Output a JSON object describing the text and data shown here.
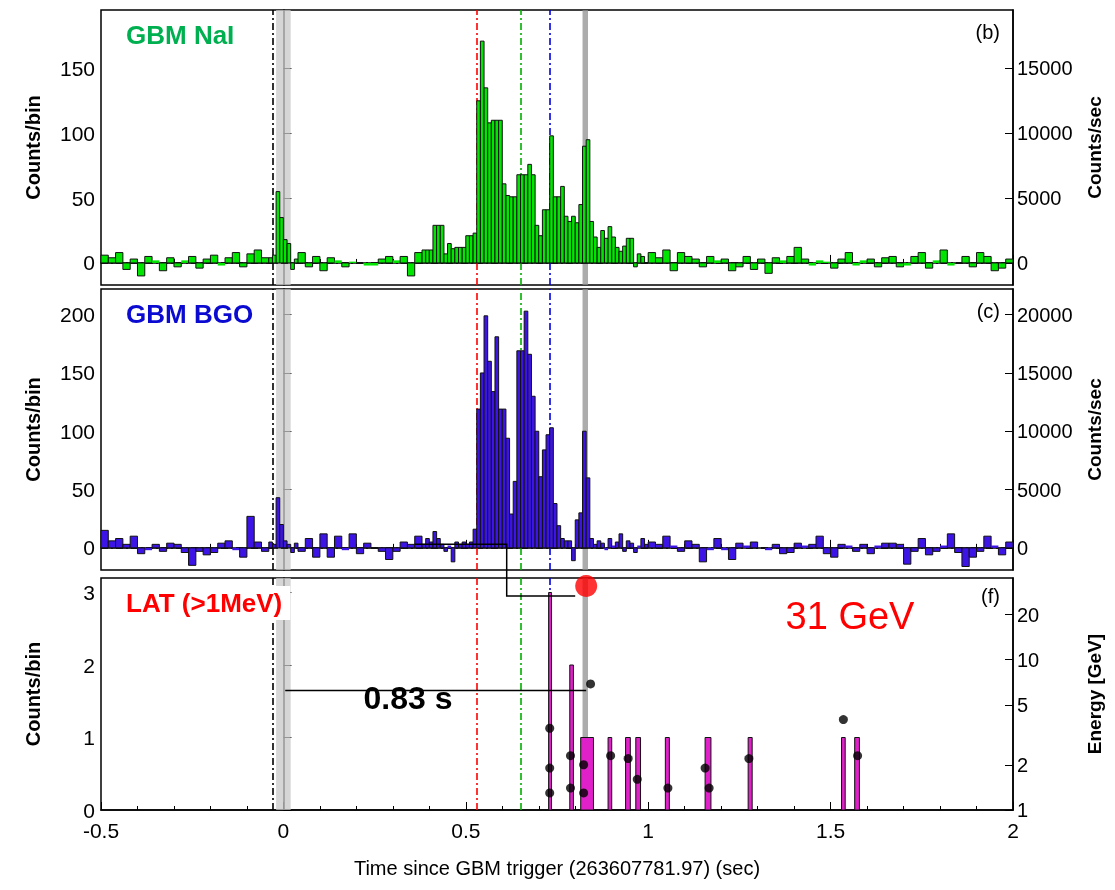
{
  "chart_data": [
    {
      "type": "histogram",
      "title": "GBM NaI",
      "ylabel": "Counts/bin",
      "y2label": "Counts/sec",
      "annotations": [
        "(b)"
      ],
      "bins": [
        -0.5,
        -0.48,
        -0.46,
        -0.44,
        -0.42,
        -0.4,
        -0.38,
        -0.36,
        -0.34,
        -0.32,
        -0.3,
        -0.28,
        -0.26,
        -0.24,
        -0.22,
        -0.2,
        -0.18,
        -0.16,
        -0.14,
        -0.12,
        -0.1,
        -0.08,
        -0.06,
        -0.04,
        -0.03,
        -0.02,
        -0.01,
        0,
        0.01,
        0.02,
        0.03,
        0.04,
        0.06,
        0.08,
        0.1,
        0.12,
        0.14,
        0.16,
        0.18,
        0.2,
        0.22,
        0.24,
        0.26,
        0.28,
        0.3,
        0.32,
        0.34,
        0.36,
        0.38,
        0.39,
        0.4,
        0.41,
        0.42,
        0.43,
        0.44,
        0.45,
        0.46,
        0.47,
        0.48,
        0.49,
        0.5,
        0.51,
        0.52,
        0.53,
        0.54,
        0.55,
        0.56,
        0.57,
        0.58,
        0.59,
        0.6,
        0.61,
        0.62,
        0.63,
        0.64,
        0.65,
        0.66,
        0.67,
        0.68,
        0.69,
        0.7,
        0.71,
        0.72,
        0.73,
        0.74,
        0.75,
        0.76,
        0.77,
        0.78,
        0.79,
        0.8,
        0.81,
        0.82,
        0.83,
        0.84,
        0.85,
        0.86,
        0.87,
        0.88,
        0.89,
        0.9,
        0.91,
        0.92,
        0.93,
        0.94,
        0.95,
        0.96,
        0.97,
        0.98,
        0.99,
        1,
        1.02,
        1.04,
        1.06,
        1.08,
        1.1,
        1.12,
        1.14,
        1.16,
        1.18,
        1.2,
        1.22,
        1.24,
        1.26,
        1.28,
        1.3,
        1.32,
        1.34,
        1.36,
        1.38,
        1.4,
        1.42,
        1.44,
        1.46,
        1.48,
        1.5,
        1.52,
        1.54,
        1.56,
        1.58,
        1.6,
        1.62,
        1.64,
        1.66,
        1.68,
        1.7,
        1.72,
        1.74,
        1.76,
        1.78,
        1.8,
        1.82,
        1.84,
        1.86,
        1.88,
        1.9,
        1.92,
        1.94,
        1.96,
        1.98,
        2
      ],
      "values": [
        6,
        4,
        8,
        -5,
        3,
        -10,
        5,
        2,
        -6,
        4,
        -3,
        2,
        5,
        -4,
        3,
        6,
        -2,
        4,
        8,
        -3,
        7,
        10,
        4,
        4,
        6,
        55,
        35,
        18,
        15,
        -5,
        3,
        8,
        -3,
        5,
        -6,
        4,
        2,
        -3,
        1,
        0,
        -2,
        -2,
        3,
        5,
        2,
        5,
        -10,
        8,
        10,
        10,
        10,
        29,
        29,
        29,
        7,
        15,
        11,
        12,
        12,
        12,
        21,
        21,
        23,
        125,
        171,
        135,
        108,
        110,
        110,
        110,
        61,
        52,
        51,
        51,
        68,
        68,
        68,
        76,
        68,
        29,
        21,
        41,
        41,
        98,
        51,
        51,
        59,
        36,
        32,
        36,
        31,
        45,
        90,
        95,
        32,
        20,
        12,
        25,
        19,
        28,
        20,
        12,
        9,
        13,
        19,
        19,
        -3,
        7,
        5,
        0,
        8,
        4,
        10,
        -6,
        8,
        5,
        3,
        -3,
        5,
        2,
        3,
        -6,
        -3,
        5,
        -5,
        3,
        -8,
        4,
        2,
        5,
        12,
        3,
        -2,
        2,
        1,
        -4,
        3,
        8,
        -2,
        2,
        3,
        -3,
        4,
        5,
        -3,
        -2,
        5,
        8,
        -4,
        2,
        10,
        -2,
        0,
        5,
        -3,
        8,
        5,
        -6,
        -4,
        3
      ],
      "color": "#00e600",
      "xlim": [
        -0.5,
        2
      ],
      "xticks": [
        -0.5,
        0,
        0.5,
        1,
        1.5,
        2
      ],
      "ylim": [
        -17,
        195
      ],
      "yticks": [
        0,
        50,
        100,
        150
      ],
      "y2lim": [
        -1700,
        19500
      ],
      "y2ticks": [
        0,
        5000,
        10000,
        15000
      ],
      "tick_labels": "y",
      "ref_lines": [
        {
          "axis": "y",
          "value": 0,
          "color": "#000000",
          "line_style": "dashed"
        },
        {
          "axis": "x",
          "value": -0.03,
          "color": "#000000",
          "line_style": "dashed"
        },
        {
          "axis": "x",
          "value": 0.53,
          "color": "#ff0000",
          "line_style": "dashed"
        },
        {
          "axis": "x",
          "value": 0.65,
          "color": "#00b000",
          "line_style": "dashed"
        },
        {
          "axis": "x",
          "value": 0.73,
          "color": "#0000e0",
          "line_style": "dashed"
        }
      ],
      "bands": [
        {
          "axis": "x",
          "from": -0.02,
          "to": 0.02,
          "color": "#c8c8c8"
        },
        {
          "axis": "x",
          "from": 0.82,
          "to": 0.835,
          "color": "#909090"
        }
      ]
    },
    {
      "type": "histogram",
      "title": "GBM BGO",
      "ylabel": "Counts/bin",
      "y2label": "Counts/sec",
      "annotations": [
        "(c)"
      ],
      "bins": [
        -0.5,
        -0.48,
        -0.46,
        -0.44,
        -0.42,
        -0.4,
        -0.38,
        -0.36,
        -0.34,
        -0.32,
        -0.3,
        -0.28,
        -0.26,
        -0.24,
        -0.22,
        -0.2,
        -0.18,
        -0.16,
        -0.14,
        -0.12,
        -0.1,
        -0.08,
        -0.06,
        -0.04,
        -0.03,
        -0.02,
        -0.01,
        0,
        0.01,
        0.02,
        0.03,
        0.04,
        0.06,
        0.08,
        0.1,
        0.12,
        0.14,
        0.16,
        0.18,
        0.2,
        0.22,
        0.24,
        0.26,
        0.28,
        0.3,
        0.32,
        0.34,
        0.36,
        0.38,
        0.39,
        0.4,
        0.41,
        0.42,
        0.43,
        0.44,
        0.45,
        0.46,
        0.47,
        0.48,
        0.49,
        0.5,
        0.51,
        0.52,
        0.53,
        0.54,
        0.55,
        0.56,
        0.57,
        0.58,
        0.59,
        0.6,
        0.61,
        0.62,
        0.63,
        0.64,
        0.65,
        0.66,
        0.67,
        0.68,
        0.69,
        0.7,
        0.71,
        0.72,
        0.73,
        0.74,
        0.75,
        0.76,
        0.77,
        0.78,
        0.79,
        0.8,
        0.81,
        0.82,
        0.83,
        0.84,
        0.85,
        0.86,
        0.87,
        0.88,
        0.89,
        0.9,
        0.91,
        0.92,
        0.93,
        0.94,
        0.95,
        0.96,
        0.97,
        0.98,
        0.99,
        1,
        1.02,
        1.04,
        1.06,
        1.08,
        1.1,
        1.12,
        1.14,
        1.16,
        1.18,
        1.2,
        1.22,
        1.24,
        1.26,
        1.28,
        1.3,
        1.32,
        1.34,
        1.36,
        1.38,
        1.4,
        1.42,
        1.44,
        1.46,
        1.48,
        1.5,
        1.52,
        1.54,
        1.56,
        1.58,
        1.6,
        1.62,
        1.64,
        1.66,
        1.68,
        1.7,
        1.72,
        1.74,
        1.76,
        1.78,
        1.8,
        1.82,
        1.84,
        1.86,
        1.88,
        1.9,
        1.92,
        1.94,
        1.96,
        1.98,
        2
      ],
      "values": [
        15,
        6,
        8,
        3,
        10,
        -5,
        -2,
        3,
        -3,
        4,
        3,
        -4,
        -15,
        -3,
        -6,
        -4,
        4,
        6,
        -2,
        -8,
        27,
        5,
        -3,
        5,
        3,
        43,
        20,
        6,
        3,
        -4,
        4,
        -3,
        8,
        -8,
        12,
        -8,
        10,
        -2,
        12,
        -5,
        4,
        0,
        -3,
        -10,
        -3,
        5,
        3,
        10,
        3,
        8,
        5,
        14,
        8,
        3,
        -3,
        2,
        -12,
        5,
        3,
        5,
        3,
        5,
        16,
        119,
        150,
        199,
        160,
        134,
        181,
        119,
        119,
        94,
        29,
        57,
        169,
        169,
        203,
        166,
        130,
        100,
        61,
        84,
        97,
        103,
        38,
        19,
        8,
        6,
        6,
        -11,
        24,
        30,
        100,
        60,
        8,
        3,
        6,
        4,
        -2,
        8,
        2,
        5,
        12,
        -3,
        6,
        4,
        -4,
        2,
        8,
        3,
        5,
        3,
        10,
        2,
        -3,
        6,
        3,
        -12,
        -2,
        8,
        -2,
        -10,
        4,
        2,
        5,
        0,
        -2,
        3,
        -5,
        -4,
        4,
        2,
        3,
        10,
        -5,
        -8,
        3,
        2,
        -3,
        3,
        -5,
        2,
        4,
        4,
        3,
        -14,
        -3,
        8,
        -6,
        -3,
        2,
        12,
        -4,
        -16,
        -8,
        -3,
        10,
        2,
        -6,
        5
      ],
      "color": "#3c14e6",
      "xlim": [
        -0.5,
        2
      ],
      "xticks": [
        -0.5,
        0,
        0.5,
        1,
        1.5,
        2
      ],
      "ylim": [
        -19,
        222
      ],
      "yticks": [
        0,
        50,
        100,
        150,
        200
      ],
      "y2lim": [
        -1900,
        22200
      ],
      "y2ticks": [
        0,
        5000,
        10000,
        15000,
        20000
      ],
      "tick_labels": "y",
      "ref_lines": [
        {
          "axis": "y",
          "value": 0,
          "color": "#000000",
          "line_style": "dashed"
        },
        {
          "axis": "x",
          "value": -0.03,
          "color": "#000000",
          "line_style": "dashed"
        },
        {
          "axis": "x",
          "value": 0.53,
          "color": "#ff0000",
          "line_style": "dashed"
        },
        {
          "axis": "x",
          "value": 0.65,
          "color": "#00b000",
          "line_style": "dashed"
        },
        {
          "axis": "x",
          "value": 0.73,
          "color": "#0000e0",
          "line_style": "dashed"
        }
      ],
      "bands": [
        {
          "axis": "x",
          "from": -0.02,
          "to": 0.02,
          "color": "#c8c8c8"
        },
        {
          "axis": "x",
          "from": 0.82,
          "to": 0.835,
          "color": "#909090"
        }
      ]
    },
    {
      "type": "histogram",
      "title": "LAT (>1MeV)",
      "xlabel": "Time since GBM trigger (263607781.97) (sec)",
      "ylabel": "Counts/bin",
      "y2label": "Energy [GeV]",
      "annotations": [
        "(f)",
        "31 GeV",
        "0.83 s"
      ],
      "series": [
        {
          "bins": [
            0.727,
            0.735,
            0.785,
            0.795,
            0.815,
            0.85,
            0.89,
            0.9,
            0.938,
            0.951,
            0.966,
            0.979,
            1.047,
            1.058,
            1.156,
            1.172,
            1.274,
            1.285,
            1.53,
            1.54,
            1.566,
            1.579
          ],
          "values": [
            3,
            0,
            2,
            0,
            1,
            0,
            1,
            0,
            1,
            0,
            1,
            0,
            1,
            0,
            1,
            0,
            1,
            0,
            1,
            0,
            1
          ],
          "color": "#e020c8"
        },
        {
          "type": "scatter",
          "axis": "y2",
          "x": [
            0.73,
            0.73,
            0.73,
            0.787,
            0.787,
            0.823,
            0.823,
            0.842,
            0.897,
            0.945,
            0.97,
            1.054,
            1.156,
            1.167,
            1.276,
            1.535,
            1.574
          ],
          "values": [
            3.5,
            1.9,
            1.3,
            2.3,
            1.4,
            2.0,
            1.3,
            6.9,
            2.3,
            2.2,
            1.6,
            1.4,
            1.9,
            1.4,
            2.2,
            4.0,
            2.3
          ],
          "color": "#000000"
        },
        {
          "type": "scatter",
          "axis": "y2",
          "x": [
            0.83
          ],
          "values": [
            31
          ],
          "color": "#ff0000"
        }
      ],
      "marker": "circle",
      "log": "y2",
      "xlim": [
        -0.5,
        2
      ],
      "xticks": [
        -0.5,
        0,
        0.5,
        1,
        1.5,
        2
      ],
      "ylim": [
        0,
        3.2
      ],
      "yticks": [
        0,
        1,
        2,
        3
      ],
      "y2lim": [
        1,
        35
      ],
      "y2ticks": [
        1,
        2,
        5,
        10,
        20
      ],
      "ref_lines": [
        {
          "axis": "x",
          "value": -0.03,
          "color": "#000000",
          "line_style": "dashed"
        },
        {
          "axis": "x",
          "value": 0.53,
          "color": "#ff0000",
          "line_style": "dashed"
        },
        {
          "axis": "x",
          "value": 0.65,
          "color": "#00b000",
          "line_style": "dashed"
        },
        {
          "axis": "x",
          "value": 0.73,
          "color": "#0000e0",
          "line_style": "dashed"
        }
      ],
      "bands": [
        {
          "axis": "x",
          "from": -0.02,
          "to": 0.02,
          "color": "#c8c8c8"
        },
        {
          "axis": "x",
          "from": 0.82,
          "to": 0.835,
          "color": "#909090"
        }
      ]
    }
  ]
}
